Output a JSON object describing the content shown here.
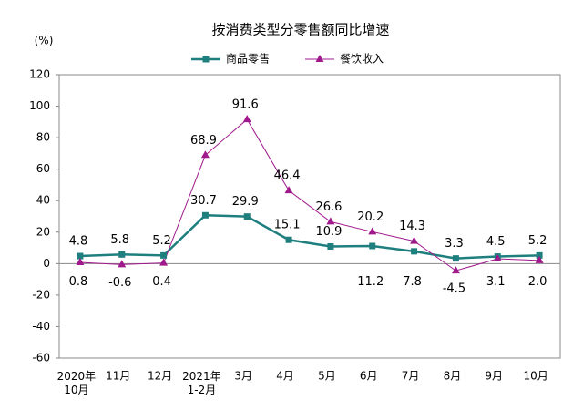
{
  "chart_data": {
    "type": "line",
    "title": "按消费类型分零售额同比增速",
    "y_unit": "(%)",
    "categories": [
      "2020年\n10月",
      "11月",
      "12月",
      "2021年\n1-2月",
      "3月",
      "4月",
      "5月",
      "6月",
      "7月",
      "8月",
      "9月",
      "10月"
    ],
    "series": [
      {
        "name": "商品零售",
        "color": "#1f7f7f",
        "marker": "square",
        "values": [
          4.8,
          5.8,
          5.2,
          30.7,
          29.9,
          15.1,
          10.9,
          11.2,
          7.8,
          3.3,
          4.5,
          5.2
        ]
      },
      {
        "name": "餐饮收入",
        "color": "#a0198c",
        "marker": "triangle",
        "values": [
          0.8,
          -0.6,
          0.4,
          68.9,
          91.6,
          46.4,
          26.6,
          20.2,
          14.3,
          -4.5,
          3.1,
          2.0
        ],
        "value_labels": [
          "0.8",
          "-0.6",
          "0.4",
          "68.9",
          "91.6",
          "46.4",
          "26.6",
          "20.2",
          "14.3",
          "-4.5",
          "3.1",
          "2.0"
        ]
      }
    ],
    "ylim": [
      -60,
      120
    ],
    "yticks": [
      -60,
      -40,
      -20,
      0,
      20,
      40,
      60,
      80,
      100,
      120
    ],
    "grid": false,
    "legend": "top"
  }
}
